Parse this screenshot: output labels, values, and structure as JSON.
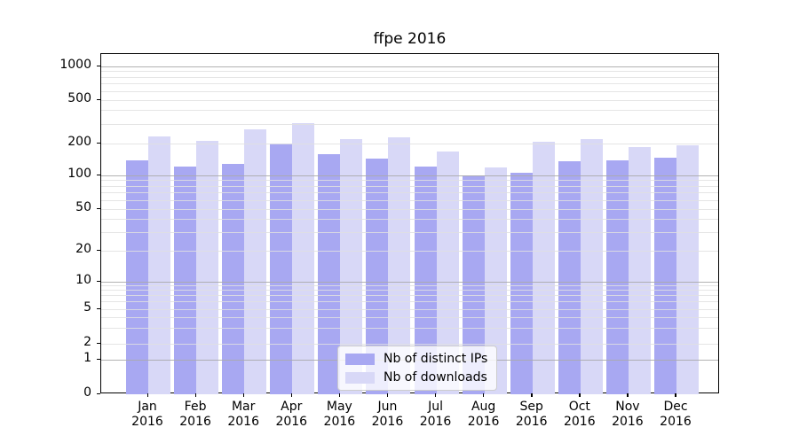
{
  "chart_data": {
    "type": "bar",
    "title": "ffpe 2016",
    "months": [
      "Jan",
      "Feb",
      "Mar",
      "Apr",
      "May",
      "Jun",
      "Jul",
      "Aug",
      "Sep",
      "Oct",
      "Nov",
      "Dec"
    ],
    "year": "2016",
    "series": [
      {
        "name": "Nb of distinct IPs",
        "color": "#a8a8f2",
        "values": [
          138,
          121,
          128,
          200,
          159,
          143,
          121,
          100,
          106,
          136,
          139,
          148
        ]
      },
      {
        "name": "Nb of downloads",
        "color": "#d8d8f7",
        "values": [
          232,
          210,
          268,
          305,
          220,
          230,
          168,
          120,
          209,
          219,
          186,
          191
        ]
      }
    ],
    "xlabel": "",
    "ylabel": "",
    "y_axis": {
      "scale": "symlog",
      "ticks": [
        0,
        1,
        2,
        5,
        10,
        20,
        50,
        100,
        200,
        500,
        1000
      ],
      "ylim": [
        0,
        1300
      ]
    },
    "grid": "minor+major horizontal, drawn over bars",
    "legend_position": "lower center"
  }
}
